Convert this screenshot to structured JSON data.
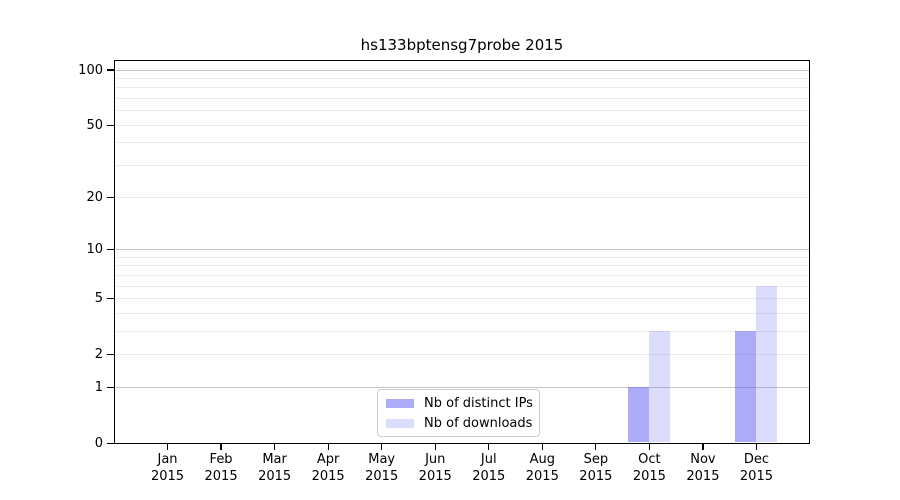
{
  "chart_data": {
    "type": "bar",
    "title": "hs133bptensg7probe 2015",
    "categories": [
      "Jan",
      "Feb",
      "Mar",
      "Apr",
      "May",
      "Jun",
      "Jul",
      "Aug",
      "Sep",
      "Oct",
      "Nov",
      "Dec"
    ],
    "category_year": "2015",
    "series": [
      {
        "name": "Nb of distinct IPs",
        "color": "rgba(102,102,243,0.55)",
        "values": [
          0,
          0,
          0,
          0,
          0,
          0,
          0,
          0,
          0,
          1,
          0,
          3
        ]
      },
      {
        "name": "Nb of downloads",
        "color": "rgba(102,102,243,0.23)",
        "values": [
          0,
          0,
          0,
          0,
          0,
          0,
          0,
          0,
          0,
          3,
          0,
          6
        ]
      }
    ],
    "xlabel": "",
    "ylabel": "",
    "y_axis": {
      "scale": "log1p",
      "tick_values": [
        0,
        1,
        2,
        5,
        10,
        20,
        50,
        100
      ],
      "major_gridline_values": [
        1,
        10,
        100
      ],
      "minor_gridline_values": [
        2,
        3,
        4,
        5,
        6,
        7,
        8,
        9,
        20,
        30,
        40,
        50,
        60,
        70,
        80,
        90
      ],
      "ylim": [
        0,
        113
      ]
    },
    "legend_position": "bottom-center",
    "grid": "horizontal",
    "colors": {
      "bar_dark": "rgba(102,102,243,0.55)",
      "bar_light": "rgba(102,102,243,0.23)",
      "major_grid": "#c6c6c6",
      "minor_grid": "#ececec",
      "axis": "#000000",
      "background": "#ffffff"
    }
  }
}
